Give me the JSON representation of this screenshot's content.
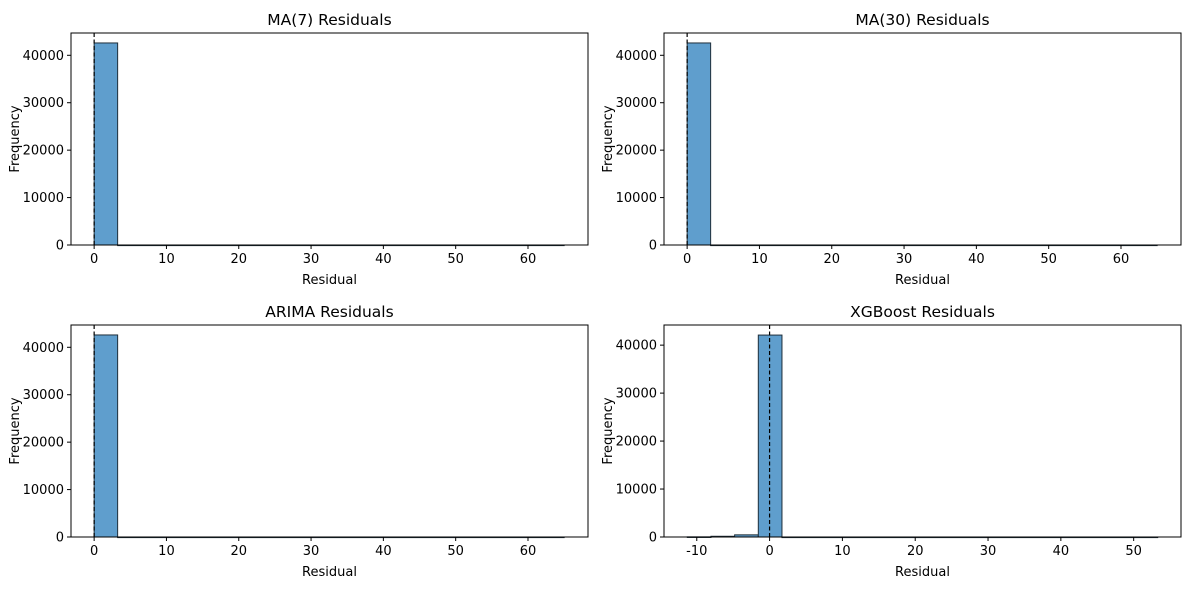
{
  "figure": {
    "bar_color": "#5f9ecd",
    "bar_edge_color": "#1f2f3a",
    "zero_line_color": "#000000"
  },
  "chart_data": [
    {
      "type": "bar",
      "title": "MA(7) Residuals",
      "xlabel": "Residual",
      "ylabel": "Frequency",
      "xlim": [
        -3.2,
        68.3
      ],
      "ylim": [
        0,
        44700
      ],
      "xticks": [
        0,
        10,
        20,
        30,
        40,
        50,
        60
      ],
      "yticks": [
        0,
        10000,
        20000,
        30000,
        40000
      ],
      "zero_line": 0,
      "bins": [
        {
          "start": 0,
          "end": 3.25,
          "count": 42600
        },
        {
          "start": 3.25,
          "end": 65,
          "count": 0
        }
      ]
    },
    {
      "type": "bar",
      "title": "MA(30) Residuals",
      "xlabel": "Residual",
      "ylabel": "Frequency",
      "xlim": [
        -3.2,
        68.3
      ],
      "ylim": [
        0,
        44700
      ],
      "xticks": [
        0,
        10,
        20,
        30,
        40,
        50,
        60
      ],
      "yticks": [
        0,
        10000,
        20000,
        30000,
        40000
      ],
      "zero_line": 0,
      "bins": [
        {
          "start": 0,
          "end": 3.25,
          "count": 42600
        },
        {
          "start": 3.25,
          "end": 65,
          "count": 0
        }
      ]
    },
    {
      "type": "bar",
      "title": "ARIMA Residuals",
      "xlabel": "Residual",
      "ylabel": "Frequency",
      "xlim": [
        -3.2,
        68.3
      ],
      "ylim": [
        0,
        44700
      ],
      "xticks": [
        0,
        10,
        20,
        30,
        40,
        50,
        60
      ],
      "yticks": [
        0,
        10000,
        20000,
        30000,
        40000
      ],
      "zero_line": 0,
      "bins": [
        {
          "start": 0,
          "end": 3.25,
          "count": 42600
        },
        {
          "start": 3.25,
          "end": 65,
          "count": 0
        }
      ]
    },
    {
      "type": "bar",
      "title": "XGBoost Residuals",
      "xlabel": "Residual",
      "ylabel": "Frequency",
      "xlim": [
        -14.5,
        56.5
      ],
      "ylim": [
        0,
        44200
      ],
      "xticks": [
        -10,
        0,
        10,
        20,
        30,
        40,
        50
      ],
      "yticks": [
        0,
        10000,
        20000,
        30000,
        40000
      ],
      "zero_line": 0,
      "bins": [
        {
          "start": -11.3,
          "end": -8.05,
          "count": 30
        },
        {
          "start": -8.05,
          "end": -4.8,
          "count": 150
        },
        {
          "start": -4.8,
          "end": -1.55,
          "count": 450
        },
        {
          "start": -1.55,
          "end": 1.7,
          "count": 42100
        },
        {
          "start": 1.7,
          "end": 53.3,
          "count": 0
        }
      ]
    }
  ]
}
